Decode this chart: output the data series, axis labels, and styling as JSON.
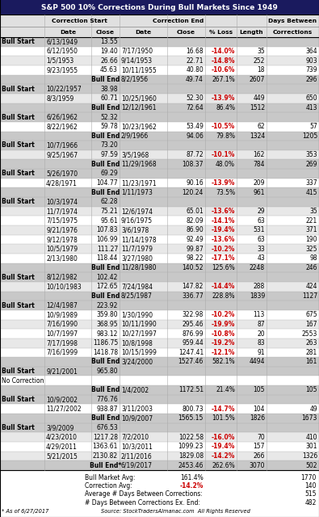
{
  "title": "S&P 500 10% Corrections During Bull Markets Since 1949",
  "rows": [
    {
      "type": "bull_start",
      "label": "Bull Start",
      "cs_date": "6/13/1949",
      "cs_close": "13.55",
      "ce_date": "",
      "ce_close": "",
      "pct_loss": "",
      "length": "",
      "days_btw": ""
    },
    {
      "type": "data",
      "label": "",
      "cs_date": "6/12/1950",
      "cs_close": "19.40",
      "ce_date": "7/17/1950",
      "ce_close": "16.68",
      "pct_loss": "-14.0%",
      "length": "35",
      "days_btw": "364"
    },
    {
      "type": "data",
      "label": "",
      "cs_date": "1/5/1953",
      "cs_close": "26.66",
      "ce_date": "9/14/1953",
      "ce_close": "22.71",
      "pct_loss": "-14.8%",
      "length": "252",
      "days_btw": "903"
    },
    {
      "type": "data",
      "label": "",
      "cs_date": "9/23/1955",
      "cs_close": "45.63",
      "ce_date": "10/11/1955",
      "ce_close": "40.80",
      "pct_loss": "-10.6%",
      "length": "18",
      "days_btw": "739"
    },
    {
      "type": "bull_end",
      "label": "",
      "cs_date": "",
      "cs_close": "Bull End",
      "ce_date": "8/2/1956",
      "ce_close": "49.74",
      "pct_loss": "267.1%",
      "length": "2607",
      "days_btw": "296"
    },
    {
      "type": "bull_start",
      "label": "Bull Start",
      "cs_date": "10/22/1957",
      "cs_close": "38.98",
      "ce_date": "",
      "ce_close": "",
      "pct_loss": "",
      "length": "",
      "days_btw": ""
    },
    {
      "type": "data",
      "label": "",
      "cs_date": "8/3/1959",
      "cs_close": "60.71",
      "ce_date": "10/25/1960",
      "ce_close": "52.30",
      "pct_loss": "-13.9%",
      "length": "449",
      "days_btw": "650"
    },
    {
      "type": "bull_end",
      "label": "",
      "cs_date": "",
      "cs_close": "Bull End",
      "ce_date": "12/12/1961",
      "ce_close": "72.64",
      "pct_loss": "86.4%",
      "length": "1512",
      "days_btw": "413"
    },
    {
      "type": "bull_start",
      "label": "Bull Start",
      "cs_date": "6/26/1962",
      "cs_close": "52.32",
      "ce_date": "",
      "ce_close": "",
      "pct_loss": "",
      "length": "",
      "days_btw": ""
    },
    {
      "type": "data",
      "label": "",
      "cs_date": "8/22/1962",
      "cs_close": "59.78",
      "ce_date": "10/23/1962",
      "ce_close": "53.49",
      "pct_loss": "-10.5%",
      "length": "62",
      "days_btw": "57"
    },
    {
      "type": "bull_end",
      "label": "",
      "cs_date": "",
      "cs_close": "Bull End",
      "ce_date": "2/9/1966",
      "ce_close": "94.06",
      "pct_loss": "79.8%",
      "length": "1324",
      "days_btw": "1205"
    },
    {
      "type": "bull_start",
      "label": "Bull Start",
      "cs_date": "10/7/1966",
      "cs_close": "73.20",
      "ce_date": "",
      "ce_close": "",
      "pct_loss": "",
      "length": "",
      "days_btw": ""
    },
    {
      "type": "data",
      "label": "",
      "cs_date": "9/25/1967",
      "cs_close": "97.59",
      "ce_date": "3/5/1968",
      "ce_close": "87.72",
      "pct_loss": "-10.1%",
      "length": "162",
      "days_btw": "353"
    },
    {
      "type": "bull_end",
      "label": "",
      "cs_date": "",
      "cs_close": "Bull End",
      "ce_date": "11/29/1968",
      "ce_close": "108.37",
      "pct_loss": "48.0%",
      "length": "784",
      "days_btw": "269"
    },
    {
      "type": "bull_start",
      "label": "Bull Start",
      "cs_date": "5/26/1970",
      "cs_close": "69.29",
      "ce_date": "",
      "ce_close": "",
      "pct_loss": "",
      "length": "",
      "days_btw": ""
    },
    {
      "type": "data",
      "label": "",
      "cs_date": "4/28/1971",
      "cs_close": "104.77",
      "ce_date": "11/23/1971",
      "ce_close": "90.16",
      "pct_loss": "-13.9%",
      "length": "209",
      "days_btw": "337"
    },
    {
      "type": "bull_end",
      "label": "",
      "cs_date": "",
      "cs_close": "Bull End",
      "ce_date": "1/11/1973",
      "ce_close": "120.24",
      "pct_loss": "73.5%",
      "length": "961",
      "days_btw": "415"
    },
    {
      "type": "bull_start",
      "label": "Bull Start",
      "cs_date": "10/3/1974",
      "cs_close": "62.28",
      "ce_date": "",
      "ce_close": "",
      "pct_loss": "",
      "length": "",
      "days_btw": ""
    },
    {
      "type": "data",
      "label": "",
      "cs_date": "11/7/1974",
      "cs_close": "75.21",
      "ce_date": "12/6/1974",
      "ce_close": "65.01",
      "pct_loss": "-13.6%",
      "length": "29",
      "days_btw": "35"
    },
    {
      "type": "data",
      "label": "",
      "cs_date": "7/15/1975",
      "cs_close": "95.61",
      "ce_date": "9/16/1975",
      "ce_close": "82.09",
      "pct_loss": "-14.1%",
      "length": "63",
      "days_btw": "221"
    },
    {
      "type": "data",
      "label": "",
      "cs_date": "9/21/1976",
      "cs_close": "107.83",
      "ce_date": "3/6/1978",
      "ce_close": "86.90",
      "pct_loss": "-19.4%",
      "length": "531",
      "days_btw": "371"
    },
    {
      "type": "data",
      "label": "",
      "cs_date": "9/12/1978",
      "cs_close": "106.99",
      "ce_date": "11/14/1978",
      "ce_close": "92.49",
      "pct_loss": "-13.6%",
      "length": "63",
      "days_btw": "190"
    },
    {
      "type": "data",
      "label": "",
      "cs_date": "10/5/1979",
      "cs_close": "111.27",
      "ce_date": "11/7/1979",
      "ce_close": "99.87",
      "pct_loss": "-10.2%",
      "length": "33",
      "days_btw": "325"
    },
    {
      "type": "data",
      "label": "",
      "cs_date": "2/13/1980",
      "cs_close": "118.44",
      "ce_date": "3/27/1980",
      "ce_close": "98.22",
      "pct_loss": "-17.1%",
      "length": "43",
      "days_btw": "98"
    },
    {
      "type": "bull_end",
      "label": "",
      "cs_date": "",
      "cs_close": "Bull End",
      "ce_date": "11/28/1980",
      "ce_close": "140.52",
      "pct_loss": "125.6%",
      "length": "2248",
      "days_btw": "246"
    },
    {
      "type": "bull_start",
      "label": "Bull Start",
      "cs_date": "8/12/1982",
      "cs_close": "102.42",
      "ce_date": "",
      "ce_close": "",
      "pct_loss": "",
      "length": "",
      "days_btw": ""
    },
    {
      "type": "data",
      "label": "",
      "cs_date": "10/10/1983",
      "cs_close": "172.65",
      "ce_date": "7/24/1984",
      "ce_close": "147.82",
      "pct_loss": "-14.4%",
      "length": "288",
      "days_btw": "424"
    },
    {
      "type": "bull_end",
      "label": "",
      "cs_date": "",
      "cs_close": "Bull End",
      "ce_date": "8/25/1987",
      "ce_close": "336.77",
      "pct_loss": "228.8%",
      "length": "1839",
      "days_btw": "1127"
    },
    {
      "type": "bull_start",
      "label": "Bull Start",
      "cs_date": "12/4/1987",
      "cs_close": "223.92",
      "ce_date": "",
      "ce_close": "",
      "pct_loss": "",
      "length": "",
      "days_btw": ""
    },
    {
      "type": "data",
      "label": "",
      "cs_date": "10/9/1989",
      "cs_close": "359.80",
      "ce_date": "1/30/1990",
      "ce_close": "322.98",
      "pct_loss": "-10.2%",
      "length": "113",
      "days_btw": "675"
    },
    {
      "type": "data",
      "label": "",
      "cs_date": "7/16/1990",
      "cs_close": "368.95",
      "ce_date": "10/11/1990",
      "ce_close": "295.46",
      "pct_loss": "-19.9%",
      "length": "87",
      "days_btw": "167"
    },
    {
      "type": "data",
      "label": "",
      "cs_date": "10/7/1997",
      "cs_close": "983.12",
      "ce_date": "10/27/1997",
      "ce_close": "876.99",
      "pct_loss": "-10.8%",
      "length": "20",
      "days_btw": "2553"
    },
    {
      "type": "data",
      "label": "",
      "cs_date": "7/17/1998",
      "cs_close": "1186.75",
      "ce_date": "10/8/1998",
      "ce_close": "959.44",
      "pct_loss": "-19.2%",
      "length": "83",
      "days_btw": "263"
    },
    {
      "type": "data",
      "label": "",
      "cs_date": "7/16/1999",
      "cs_close": "1418.78",
      "ce_date": "10/15/1999",
      "ce_close": "1247.41",
      "pct_loss": "-12.1%",
      "length": "91",
      "days_btw": "281"
    },
    {
      "type": "bull_end",
      "label": "",
      "cs_date": "",
      "cs_close": "Bull End",
      "ce_date": "3/24/2000",
      "ce_close": "1527.46",
      "pct_loss": "582.1%",
      "length": "4494",
      "days_btw": "161"
    },
    {
      "type": "bull_start",
      "label": "Bull Start",
      "cs_date": "9/21/2001",
      "cs_close": "965.80",
      "ce_date": "",
      "ce_close": "",
      "pct_loss": "",
      "length": "",
      "days_btw": ""
    },
    {
      "type": "no_correction",
      "label": "No Correction",
      "cs_date": "",
      "cs_close": "",
      "ce_date": "",
      "ce_close": "",
      "pct_loss": "",
      "length": "",
      "days_btw": ""
    },
    {
      "type": "bull_end",
      "label": "",
      "cs_date": "",
      "cs_close": "Bull End",
      "ce_date": "1/4/2002",
      "ce_close": "1172.51",
      "pct_loss": "21.4%",
      "length": "105",
      "days_btw": "105"
    },
    {
      "type": "bull_start",
      "label": "Bull Start",
      "cs_date": "10/9/2002",
      "cs_close": "776.76",
      "ce_date": "",
      "ce_close": "",
      "pct_loss": "",
      "length": "",
      "days_btw": ""
    },
    {
      "type": "data",
      "label": "",
      "cs_date": "11/27/2002",
      "cs_close": "938.87",
      "ce_date": "3/11/2003",
      "ce_close": "800.73",
      "pct_loss": "-14.7%",
      "length": "104",
      "days_btw": "49"
    },
    {
      "type": "bull_end",
      "label": "",
      "cs_date": "",
      "cs_close": "Bull End",
      "ce_date": "10/9/2007",
      "ce_close": "1565.15",
      "pct_loss": "101.5%",
      "length": "1826",
      "days_btw": "1673"
    },
    {
      "type": "bull_start",
      "label": "Bull Start",
      "cs_date": "3/9/2009",
      "cs_close": "676.53",
      "ce_date": "",
      "ce_close": "",
      "pct_loss": "",
      "length": "",
      "days_btw": ""
    },
    {
      "type": "data",
      "label": "",
      "cs_date": "4/23/2010",
      "cs_close": "1217.28",
      "ce_date": "7/2/2010",
      "ce_close": "1022.58",
      "pct_loss": "-16.0%",
      "length": "70",
      "days_btw": "410"
    },
    {
      "type": "data",
      "label": "",
      "cs_date": "4/29/2011",
      "cs_close": "1363.61",
      "ce_date": "10/3/2011",
      "ce_close": "1099.23",
      "pct_loss": "-19.4%",
      "length": "157",
      "days_btw": "301"
    },
    {
      "type": "data",
      "label": "",
      "cs_date": "5/21/2015",
      "cs_close": "2130.82",
      "ce_date": "2/11/2016",
      "ce_close": "1829.08",
      "pct_loss": "-14.2%",
      "length": "266",
      "days_btw": "1326"
    },
    {
      "type": "bull_end_star",
      "label": "",
      "cs_date": "",
      "cs_close": "Bull End*",
      "ce_date": "6/19/2017",
      "ce_close": "2453.46",
      "pct_loss": "262.6%",
      "length": "3070",
      "days_btw": "502"
    }
  ],
  "title_bg": "#1a1a5e",
  "title_fg": "#ffffff",
  "header_bg": "#e0e0e0",
  "bull_start_bg": "#c8c8c8",
  "bull_end_bg": "#c8c8c8",
  "data_bg1": "#ffffff",
  "data_bg2": "#e8e8e8",
  "nc_bg": "#ffffff",
  "loss_color": "#cc0000",
  "border_color": "#888888",
  "divider_color": "#aaaaaa"
}
